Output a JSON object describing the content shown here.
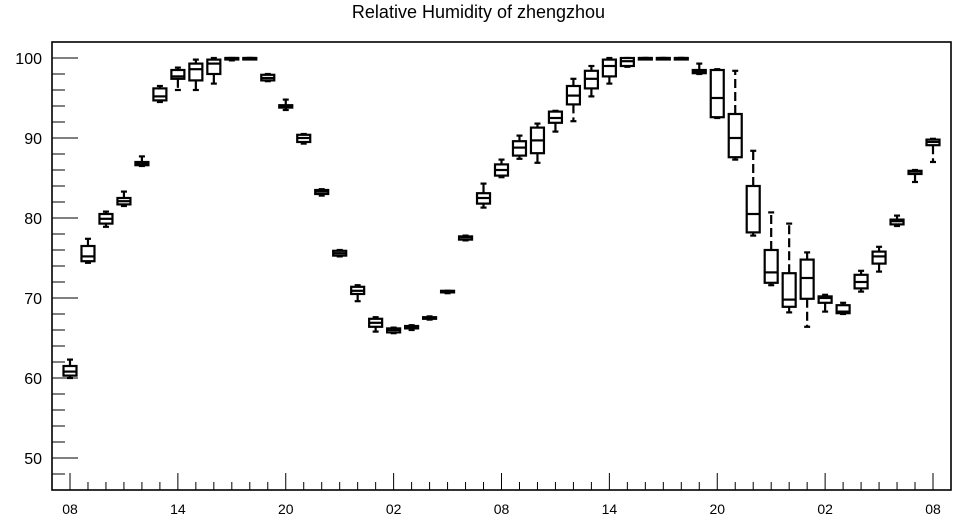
{
  "chart_data": {
    "type": "boxplot",
    "title": "Relative Humidity of zhengzhou",
    "xlabel": "",
    "ylabel": "",
    "ylim": [
      46,
      102
    ],
    "yticks": [
      50,
      60,
      70,
      80,
      90,
      100
    ],
    "x_tick_labels": [
      "08",
      "14",
      "20",
      "02",
      "08",
      "14",
      "20",
      "02",
      "08"
    ],
    "grid": false,
    "boxes": [
      {
        "x": 0,
        "min": 60.0,
        "q1": 60.3,
        "median": 60.8,
        "q3": 61.5,
        "max": 62.3
      },
      {
        "x": 1,
        "min": 74.4,
        "q1": 74.6,
        "median": 75.2,
        "q3": 76.5,
        "max": 77.4
      },
      {
        "x": 2,
        "min": 78.9,
        "q1": 79.3,
        "median": 79.9,
        "q3": 80.5,
        "max": 80.8
      },
      {
        "x": 3,
        "min": 81.5,
        "q1": 81.7,
        "median": 82.1,
        "q3": 82.5,
        "max": 83.3
      },
      {
        "x": 4,
        "min": 86.5,
        "q1": 86.6,
        "median": 86.8,
        "q3": 87.0,
        "max": 87.7
      },
      {
        "x": 5,
        "min": 94.5,
        "q1": 94.7,
        "median": 95.2,
        "q3": 96.2,
        "max": 96.5
      },
      {
        "x": 6,
        "min": 96.0,
        "q1": 97.4,
        "median": 97.7,
        "q3": 98.5,
        "max": 98.8
      },
      {
        "x": 7,
        "min": 96.0,
        "q1": 97.2,
        "median": 98.6,
        "q3": 99.3,
        "max": 99.8
      },
      {
        "x": 8,
        "min": 96.8,
        "q1": 98.0,
        "median": 99.3,
        "q3": 99.8,
        "max": 100.0
      },
      {
        "x": 9,
        "min": 99.7,
        "q1": 100.0,
        "median": 100.0,
        "q3": 100.0,
        "max": 100.0
      },
      {
        "x": 10,
        "min": 100.0,
        "q1": 100.0,
        "median": 100.0,
        "q3": 100.0,
        "max": 100.0
      },
      {
        "x": 11,
        "min": 97.1,
        "q1": 97.2,
        "median": 97.5,
        "q3": 97.9,
        "max": 98.0
      },
      {
        "x": 12,
        "min": 93.5,
        "q1": 93.8,
        "median": 94.0,
        "q3": 94.1,
        "max": 94.8
      },
      {
        "x": 13,
        "min": 89.3,
        "q1": 89.5,
        "median": 90.0,
        "q3": 90.4,
        "max": 90.5
      },
      {
        "x": 14,
        "min": 82.8,
        "q1": 83.0,
        "median": 83.3,
        "q3": 83.5,
        "max": 83.6
      },
      {
        "x": 15,
        "min": 75.2,
        "q1": 75.3,
        "median": 75.6,
        "q3": 75.9,
        "max": 76.0
      },
      {
        "x": 16,
        "min": 69.6,
        "q1": 70.5,
        "median": 70.9,
        "q3": 71.4,
        "max": 71.6
      },
      {
        "x": 17,
        "min": 65.8,
        "q1": 66.4,
        "median": 66.9,
        "q3": 67.4,
        "max": 67.6
      },
      {
        "x": 18,
        "min": 65.6,
        "q1": 65.7,
        "median": 66.0,
        "q3": 66.2,
        "max": 66.3
      },
      {
        "x": 19,
        "min": 66.0,
        "q1": 66.2,
        "median": 66.4,
        "q3": 66.5,
        "max": 66.6
      },
      {
        "x": 20,
        "min": 67.3,
        "q1": 67.4,
        "median": 67.5,
        "q3": 67.6,
        "max": 67.7
      },
      {
        "x": 21,
        "min": 70.6,
        "q1": 70.7,
        "median": 70.8,
        "q3": 70.9,
        "max": 70.9
      },
      {
        "x": 22,
        "min": 77.2,
        "q1": 77.3,
        "median": 77.6,
        "q3": 77.7,
        "max": 77.8
      },
      {
        "x": 23,
        "min": 81.3,
        "q1": 81.8,
        "median": 82.5,
        "q3": 83.1,
        "max": 84.3
      },
      {
        "x": 24,
        "min": 85.1,
        "q1": 85.3,
        "median": 86.0,
        "q3": 86.7,
        "max": 87.3
      },
      {
        "x": 25,
        "min": 87.4,
        "q1": 87.8,
        "median": 88.8,
        "q3": 89.6,
        "max": 90.3
      },
      {
        "x": 26,
        "min": 86.9,
        "q1": 88.1,
        "median": 89.7,
        "q3": 91.3,
        "max": 91.8
      },
      {
        "x": 27,
        "min": 90.8,
        "q1": 91.9,
        "median": 92.5,
        "q3": 93.3,
        "max": 93.4
      },
      {
        "x": 28,
        "min": 92.1,
        "q1": 94.2,
        "median": 95.3,
        "q3": 96.5,
        "max": 97.4
      },
      {
        "x": 29,
        "min": 95.2,
        "q1": 96.2,
        "median": 97.4,
        "q3": 98.4,
        "max": 99.0
      },
      {
        "x": 30,
        "min": 96.8,
        "q1": 97.7,
        "median": 99.0,
        "q3": 99.8,
        "max": 100.0
      },
      {
        "x": 31,
        "min": 98.9,
        "q1": 99.0,
        "median": 99.6,
        "q3": 100.0,
        "max": 100.0
      },
      {
        "x": 32,
        "min": 100.0,
        "q1": 100.0,
        "median": 100.0,
        "q3": 100.0,
        "max": 100.0
      },
      {
        "x": 33,
        "min": 100.0,
        "q1": 100.0,
        "median": 100.0,
        "q3": 100.0,
        "max": 100.0
      },
      {
        "x": 34,
        "min": 100.0,
        "q1": 100.0,
        "median": 100.0,
        "q3": 100.0,
        "max": 100.0
      },
      {
        "x": 35,
        "min": 98.0,
        "q1": 98.1,
        "median": 98.3,
        "q3": 98.5,
        "max": 99.3
      },
      {
        "x": 36,
        "min": 92.5,
        "q1": 92.6,
        "median": 95.0,
        "q3": 98.5,
        "max": 98.6
      },
      {
        "x": 37,
        "min": 87.3,
        "q1": 87.6,
        "median": 90.0,
        "q3": 93.0,
        "max": 98.4
      },
      {
        "x": 38,
        "min": 77.8,
        "q1": 78.2,
        "median": 80.5,
        "q3": 84.0,
        "max": 88.4
      },
      {
        "x": 39,
        "min": 71.6,
        "q1": 71.9,
        "median": 73.2,
        "q3": 76.0,
        "max": 80.7
      },
      {
        "x": 40,
        "min": 68.2,
        "q1": 68.9,
        "median": 69.8,
        "q3": 73.1,
        "max": 79.3
      },
      {
        "x": 41,
        "min": 66.4,
        "q1": 69.9,
        "median": 72.5,
        "q3": 74.8,
        "max": 75.7
      },
      {
        "x": 42,
        "min": 68.3,
        "q1": 69.4,
        "median": 70.0,
        "q3": 70.2,
        "max": 70.4
      },
      {
        "x": 43,
        "min": 68.0,
        "q1": 68.1,
        "median": 68.3,
        "q3": 69.1,
        "max": 69.4
      },
      {
        "x": 44,
        "min": 70.8,
        "q1": 71.2,
        "median": 72.0,
        "q3": 72.9,
        "max": 73.4
      },
      {
        "x": 45,
        "min": 73.3,
        "q1": 74.3,
        "median": 75.2,
        "q3": 75.8,
        "max": 76.4
      },
      {
        "x": 46,
        "min": 79.0,
        "q1": 79.2,
        "median": 79.6,
        "q3": 79.8,
        "max": 80.3
      },
      {
        "x": 47,
        "min": 84.5,
        "q1": 85.5,
        "median": 85.8,
        "q3": 85.9,
        "max": 86.0
      },
      {
        "x": 48,
        "min": 87.0,
        "q1": 89.1,
        "median": 89.5,
        "q3": 89.8,
        "max": 89.9
      }
    ]
  }
}
